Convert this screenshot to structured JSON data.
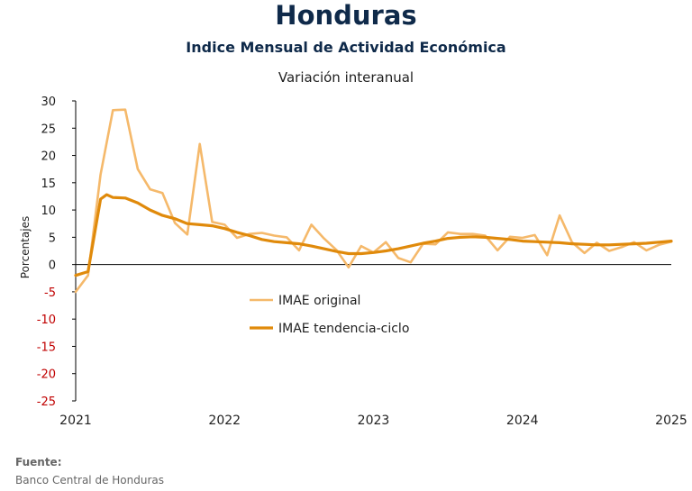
{
  "header": {
    "title": "Honduras",
    "subtitle": "Indice Mensual de  Actividad Económica",
    "subsubtitle": "Variación interanual"
  },
  "source": {
    "label": "Fuente:",
    "text": "Banco Central de Honduras"
  },
  "colors": {
    "original": "#f5b96b",
    "trend": "#e08a0b",
    "axis": "#000000",
    "negative_tick": "#c00000"
  },
  "chart_data": {
    "type": "line",
    "ylabel": "Porcentajes",
    "ylim": [
      -25,
      30
    ],
    "yticks": [
      30,
      25,
      20,
      15,
      10,
      5,
      0,
      -5,
      -10,
      -15,
      -20,
      -25
    ],
    "xlim": [
      2021.0,
      2025.0
    ],
    "xticks": [
      "2021",
      "2022",
      "2023",
      "2024",
      "2025"
    ],
    "grid": false,
    "legend_placement": "center-left",
    "series": [
      {
        "name": "IMAE original",
        "x": [
          2021.0,
          2021.083,
          2021.167,
          2021.25,
          2021.333,
          2021.417,
          2021.5,
          2021.583,
          2021.667,
          2021.75,
          2021.833,
          2021.917,
          2022.0,
          2022.083,
          2022.167,
          2022.25,
          2022.333,
          2022.417,
          2022.5,
          2022.583,
          2022.667,
          2022.75,
          2022.833,
          2022.917,
          2023.0,
          2023.083,
          2023.167,
          2023.25,
          2023.333,
          2023.417,
          2023.5,
          2023.583,
          2023.667,
          2023.75,
          2023.833,
          2023.917,
          2024.0,
          2024.083,
          2024.167,
          2024.25,
          2024.333,
          2024.417,
          2024.5,
          2024.583,
          2024.667,
          2024.75,
          2024.833,
          2024.917,
          2025.0
        ],
        "values": [
          -5.0,
          -2.0,
          16.5,
          28.3,
          28.4,
          17.5,
          13.8,
          13.1,
          7.6,
          5.5,
          22.1,
          7.8,
          7.3,
          4.9,
          5.6,
          5.8,
          5.3,
          5.0,
          2.6,
          7.3,
          4.8,
          2.7,
          -0.5,
          3.4,
          2.2,
          4.1,
          1.2,
          0.4,
          3.8,
          3.7,
          5.9,
          5.6,
          5.6,
          5.3,
          2.6,
          5.1,
          4.9,
          5.4,
          1.7,
          9.0,
          4.1,
          2.1,
          4.0,
          2.5,
          3.2,
          4.1,
          2.6,
          3.6,
          4.2
        ]
      },
      {
        "name": "IMAE tendencia-ciclo",
        "x": [
          2021.0,
          2021.083,
          2021.167,
          2021.208,
          2021.25,
          2021.333,
          2021.417,
          2021.5,
          2021.583,
          2021.667,
          2021.75,
          2021.833,
          2021.917,
          2022.0,
          2022.083,
          2022.167,
          2022.25,
          2022.333,
          2022.417,
          2022.5,
          2022.583,
          2022.667,
          2022.75,
          2022.833,
          2022.917,
          2023.0,
          2023.083,
          2023.167,
          2023.25,
          2023.333,
          2023.417,
          2023.5,
          2023.583,
          2023.667,
          2023.75,
          2023.833,
          2023.917,
          2024.0,
          2024.083,
          2024.167,
          2024.25,
          2024.333,
          2024.417,
          2024.5,
          2024.583,
          2024.667,
          2024.75,
          2024.833,
          2024.917,
          2025.0
        ],
        "values": [
          -2.0,
          -1.3,
          12.0,
          12.8,
          12.3,
          12.2,
          11.3,
          10.0,
          9.0,
          8.4,
          7.5,
          7.3,
          7.1,
          6.6,
          5.9,
          5.3,
          4.6,
          4.2,
          4.0,
          3.8,
          3.4,
          2.9,
          2.4,
          2.0,
          2.0,
          2.2,
          2.5,
          2.9,
          3.4,
          3.9,
          4.3,
          4.8,
          5.0,
          5.1,
          5.0,
          4.8,
          4.6,
          4.3,
          4.2,
          4.1,
          4.0,
          3.8,
          3.7,
          3.6,
          3.6,
          3.7,
          3.8,
          3.9,
          4.1,
          4.3
        ]
      }
    ]
  }
}
